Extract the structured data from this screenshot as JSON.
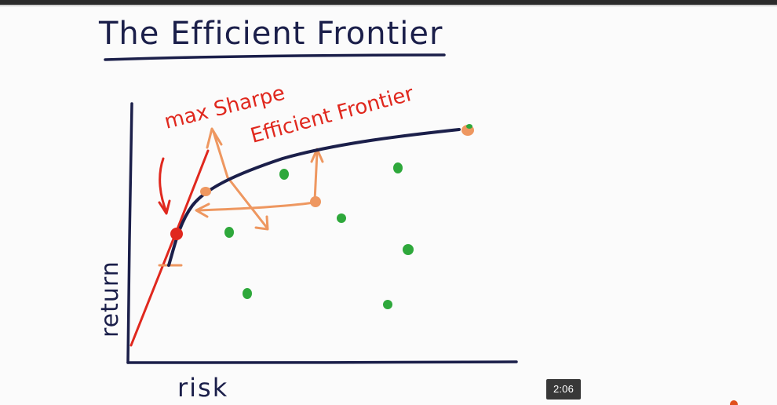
{
  "slide": {
    "title": "The Efficient Frontier",
    "label_max_sharpe": "max Sharpe",
    "label_efficient_frontier": "Efficient Frontier",
    "axis_x_label": "risk",
    "axis_y_label": "return"
  },
  "player": {
    "timestamp": "2:06"
  },
  "colors": {
    "ink": "#1b1f4a",
    "red": "#e0281e",
    "orange": "#ee9760",
    "green": "#2ea83b"
  },
  "chart_data": {
    "type": "scatter",
    "title": "The Efficient Frontier",
    "xlabel": "risk",
    "ylabel": "return",
    "grid": false,
    "legend": "none",
    "note": "Hand-drawn slide; values are approximate relative positions on unlabeled axes (0-100 scale).",
    "portfolios": [
      {
        "x": 24,
        "y": 53
      },
      {
        "x": 30,
        "y": 27
      },
      {
        "x": 40,
        "y": 73
      },
      {
        "x": 55,
        "y": 58
      },
      {
        "x": 67,
        "y": 75
      },
      {
        "x": 72,
        "y": 45
      },
      {
        "x": 66,
        "y": 23
      }
    ],
    "frontier": [
      {
        "x": 10,
        "y": 40
      },
      {
        "x": 13,
        "y": 55
      },
      {
        "x": 20,
        "y": 67
      },
      {
        "x": 40,
        "y": 78
      },
      {
        "x": 60,
        "y": 85
      },
      {
        "x": 86,
        "y": 92
      }
    ],
    "max_sharpe_point": {
      "x": 12,
      "y": 52
    },
    "max_return_point": {
      "x": 87,
      "y": 92
    },
    "capital_market_line": [
      {
        "x": 0,
        "y": 7
      },
      {
        "x": 19,
        "y": 86
      }
    ]
  }
}
